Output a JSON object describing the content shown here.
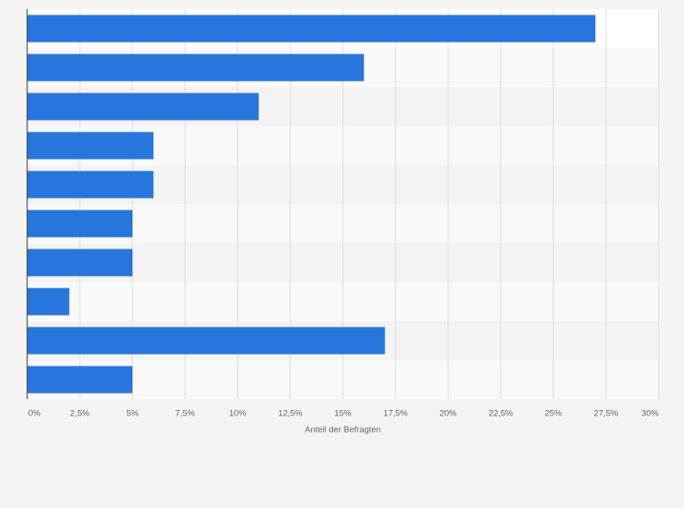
{
  "chart_data": {
    "type": "bar",
    "orientation": "horizontal",
    "categories": [
      null,
      null,
      null,
      null,
      null,
      null,
      null,
      null,
      null,
      null
    ],
    "values": [
      27,
      16,
      11,
      6,
      6,
      5,
      5,
      2,
      17,
      5
    ],
    "color": "#2776dc",
    "xlabel": "Anteil der Befragten",
    "xlim": [
      0,
      30
    ],
    "xticks": [
      {
        "value": 0,
        "label": "0%"
      },
      {
        "value": 2.5,
        "label": "2,5%"
      },
      {
        "value": 5,
        "label": "5%"
      },
      {
        "value": 7.5,
        "label": "7,5%"
      },
      {
        "value": 10,
        "label": "10%"
      },
      {
        "value": 12.5,
        "label": "12,5%"
      },
      {
        "value": 15,
        "label": "15%"
      },
      {
        "value": 17.5,
        "label": "17,5%"
      },
      {
        "value": 20,
        "label": "20%"
      },
      {
        "value": 22.5,
        "label": "22,5%"
      },
      {
        "value": 25,
        "label": "25%"
      },
      {
        "value": 27.5,
        "label": "27,5%"
      },
      {
        "value": 30,
        "label": "30%"
      }
    ],
    "grid": true
  }
}
